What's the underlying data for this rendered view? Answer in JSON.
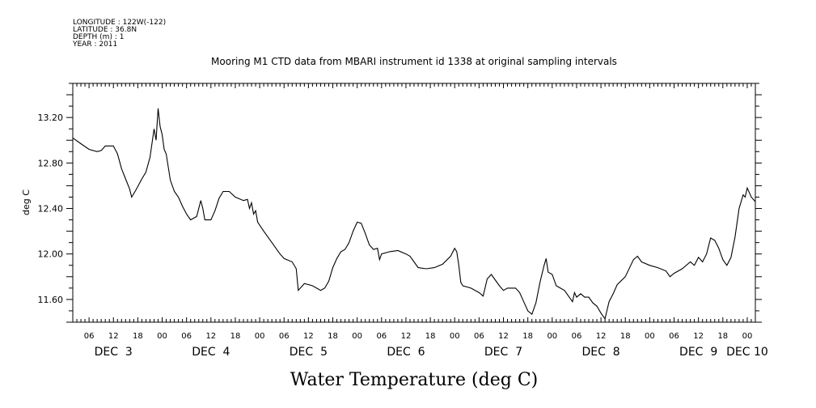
{
  "metadata": {
    "longitude": "LONGITUDE : 122W(-122)",
    "latitude": "LATITUDE : 36.8N",
    "depth": "DEPTH (m) : 1",
    "year": "YEAR : 2011"
  },
  "chart_data": {
    "type": "line",
    "title": "Mooring M1 CTD data from MBARI instrument id 1338 at original sampling intervals",
    "xlabel": "Water Temperature (deg C)",
    "ylabel": "deg C",
    "ylim": [
      11.4,
      13.5
    ],
    "yticks": [
      11.6,
      12.0,
      12.4,
      12.8,
      13.2
    ],
    "ytick_labels": [
      "11.60",
      "12.00",
      "12.40",
      "12.80",
      "13.20"
    ],
    "x_start": "2011-12-03T02:00",
    "x_end": "2011-12-10T02:00",
    "hour_labels": [
      {
        "x": "2011-12-03T06:00",
        "text": "06"
      },
      {
        "x": "2011-12-03T12:00",
        "text": "12"
      },
      {
        "x": "2011-12-03T18:00",
        "text": "18"
      },
      {
        "x": "2011-12-04T00:00",
        "text": "00"
      },
      {
        "x": "2011-12-04T06:00",
        "text": "06"
      },
      {
        "x": "2011-12-04T12:00",
        "text": "12"
      },
      {
        "x": "2011-12-04T18:00",
        "text": "18"
      },
      {
        "x": "2011-12-05T00:00",
        "text": "00"
      },
      {
        "x": "2011-12-05T06:00",
        "text": "06"
      },
      {
        "x": "2011-12-05T12:00",
        "text": "12"
      },
      {
        "x": "2011-12-05T18:00",
        "text": "18"
      },
      {
        "x": "2011-12-06T00:00",
        "text": "00"
      },
      {
        "x": "2011-12-06T06:00",
        "text": "06"
      },
      {
        "x": "2011-12-06T12:00",
        "text": "12"
      },
      {
        "x": "2011-12-06T18:00",
        "text": "18"
      },
      {
        "x": "2011-12-07T00:00",
        "text": "00"
      },
      {
        "x": "2011-12-07T06:00",
        "text": "06"
      },
      {
        "x": "2011-12-07T12:00",
        "text": "12"
      },
      {
        "x": "2011-12-07T18:00",
        "text": "18"
      },
      {
        "x": "2011-12-08T00:00",
        "text": "00"
      },
      {
        "x": "2011-12-08T06:00",
        "text": "06"
      },
      {
        "x": "2011-12-08T12:00",
        "text": "12"
      },
      {
        "x": "2011-12-08T18:00",
        "text": "18"
      },
      {
        "x": "2011-12-09T00:00",
        "text": "00"
      },
      {
        "x": "2011-12-09T06:00",
        "text": "06"
      },
      {
        "x": "2011-12-09T12:00",
        "text": "12"
      },
      {
        "x": "2011-12-09T18:00",
        "text": "18"
      },
      {
        "x": "2011-12-10T00:00",
        "text": "00"
      }
    ],
    "day_labels": [
      {
        "x": "2011-12-03T12:00",
        "text": "DEC  3"
      },
      {
        "x": "2011-12-04T12:00",
        "text": "DEC  4"
      },
      {
        "x": "2011-12-05T12:00",
        "text": "DEC  5"
      },
      {
        "x": "2011-12-06T12:00",
        "text": "DEC  6"
      },
      {
        "x": "2011-12-07T12:00",
        "text": "DEC  7"
      },
      {
        "x": "2011-12-08T12:00",
        "text": "DEC  8"
      },
      {
        "x": "2011-12-09T12:00",
        "text": "DEC  9"
      },
      {
        "x": "2011-12-10T00:00",
        "text": "DEC 10"
      }
    ],
    "series": [
      {
        "values": [
          [
            "2011-12-03T02:00",
            13.02
          ],
          [
            "2011-12-03T04:00",
            12.97
          ],
          [
            "2011-12-03T06:00",
            12.92
          ],
          [
            "2011-12-03T08:00",
            12.9
          ],
          [
            "2011-12-03T09:00",
            12.91
          ],
          [
            "2011-12-03T10:00",
            12.95
          ],
          [
            "2011-12-03T12:00",
            12.95
          ],
          [
            "2011-12-03T13:00",
            12.88
          ],
          [
            "2011-12-03T14:00",
            12.75
          ],
          [
            "2011-12-03T15:00",
            12.66
          ],
          [
            "2011-12-03T16:00",
            12.57
          ],
          [
            "2011-12-03T16:30",
            12.5
          ],
          [
            "2011-12-03T17:30",
            12.56
          ],
          [
            "2011-12-03T19:00",
            12.66
          ],
          [
            "2011-12-03T20:00",
            12.72
          ],
          [
            "2011-12-03T21:00",
            12.85
          ],
          [
            "2011-12-03T22:00",
            13.1
          ],
          [
            "2011-12-03T22:30",
            13.0
          ],
          [
            "2011-12-03T23:00",
            13.28
          ],
          [
            "2011-12-03T23:30",
            13.12
          ],
          [
            "2011-12-04T00:00",
            13.05
          ],
          [
            "2011-12-04T00:30",
            12.92
          ],
          [
            "2011-12-04T01:00",
            12.88
          ],
          [
            "2011-12-04T02:00",
            12.65
          ],
          [
            "2011-12-04T03:00",
            12.55
          ],
          [
            "2011-12-04T04:00",
            12.5
          ],
          [
            "2011-12-04T05:00",
            12.42
          ],
          [
            "2011-12-04T06:00",
            12.35
          ],
          [
            "2011-12-04T07:00",
            12.3
          ],
          [
            "2011-12-04T08:30",
            12.33
          ],
          [
            "2011-12-04T09:30",
            12.47
          ],
          [
            "2011-12-04T10:00",
            12.4
          ],
          [
            "2011-12-04T10:30",
            12.3
          ],
          [
            "2011-12-04T12:00",
            12.3
          ],
          [
            "2011-12-04T13:00",
            12.38
          ],
          [
            "2011-12-04T14:00",
            12.49
          ],
          [
            "2011-12-04T15:00",
            12.55
          ],
          [
            "2011-12-04T16:30",
            12.55
          ],
          [
            "2011-12-04T18:00",
            12.5
          ],
          [
            "2011-12-04T20:00",
            12.47
          ],
          [
            "2011-12-04T21:00",
            12.48
          ],
          [
            "2011-12-04T21:30",
            12.4
          ],
          [
            "2011-12-04T22:00",
            12.45
          ],
          [
            "2011-12-04T22:30",
            12.35
          ],
          [
            "2011-12-04T23:00",
            12.38
          ],
          [
            "2011-12-04T23:30",
            12.28
          ],
          [
            "2011-12-05T01:00",
            12.2
          ],
          [
            "2011-12-05T03:00",
            12.1
          ],
          [
            "2011-12-05T04:00",
            12.05
          ],
          [
            "2011-12-05T05:00",
            12.0
          ],
          [
            "2011-12-05T06:00",
            11.96
          ],
          [
            "2011-12-05T08:00",
            11.93
          ],
          [
            "2011-12-05T09:00",
            11.87
          ],
          [
            "2011-12-05T09:30",
            11.68
          ],
          [
            "2011-12-05T11:00",
            11.74
          ],
          [
            "2011-12-05T13:00",
            11.72
          ],
          [
            "2011-12-05T15:00",
            11.68
          ],
          [
            "2011-12-05T16:00",
            11.7
          ],
          [
            "2011-12-05T17:00",
            11.76
          ],
          [
            "2011-12-05T18:00",
            11.88
          ],
          [
            "2011-12-05T19:00",
            11.96
          ],
          [
            "2011-12-05T20:00",
            12.02
          ],
          [
            "2011-12-05T21:00",
            12.04
          ],
          [
            "2011-12-05T22:00",
            12.1
          ],
          [
            "2011-12-05T23:00",
            12.2
          ],
          [
            "2011-12-06T00:00",
            12.28
          ],
          [
            "2011-12-06T01:00",
            12.27
          ],
          [
            "2011-12-06T02:00",
            12.18
          ],
          [
            "2011-12-06T03:00",
            12.08
          ],
          [
            "2011-12-06T04:00",
            12.04
          ],
          [
            "2011-12-06T05:00",
            12.05
          ],
          [
            "2011-12-06T05:30",
            11.95
          ],
          [
            "2011-12-06T06:00",
            12.0
          ],
          [
            "2011-12-06T08:00",
            12.02
          ],
          [
            "2011-12-06T10:00",
            12.03
          ],
          [
            "2011-12-06T12:00",
            12.0
          ],
          [
            "2011-12-06T13:00",
            11.98
          ],
          [
            "2011-12-06T14:00",
            11.93
          ],
          [
            "2011-12-06T15:00",
            11.88
          ],
          [
            "2011-12-06T17:00",
            11.87
          ],
          [
            "2011-12-06T19:00",
            11.88
          ],
          [
            "2011-12-06T21:00",
            11.91
          ],
          [
            "2011-12-06T23:00",
            11.98
          ],
          [
            "2011-12-07T00:00",
            12.05
          ],
          [
            "2011-12-07T00:30",
            12.02
          ],
          [
            "2011-12-07T01:00",
            11.9
          ],
          [
            "2011-12-07T01:30",
            11.75
          ],
          [
            "2011-12-07T02:00",
            11.72
          ],
          [
            "2011-12-07T04:00",
            11.7
          ],
          [
            "2011-12-07T06:00",
            11.66
          ],
          [
            "2011-12-07T07:00",
            11.63
          ],
          [
            "2011-12-07T08:00",
            11.78
          ],
          [
            "2011-12-07T09:00",
            11.82
          ],
          [
            "2011-12-07T10:00",
            11.77
          ],
          [
            "2011-12-07T11:00",
            11.72
          ],
          [
            "2011-12-07T12:00",
            11.68
          ],
          [
            "2011-12-07T13:00",
            11.7
          ],
          [
            "2011-12-07T15:00",
            11.7
          ],
          [
            "2011-12-07T16:00",
            11.66
          ],
          [
            "2011-12-07T17:00",
            11.58
          ],
          [
            "2011-12-07T18:00",
            11.5
          ],
          [
            "2011-12-07T19:00",
            11.47
          ],
          [
            "2011-12-07T20:00",
            11.57
          ],
          [
            "2011-12-07T21:00",
            11.75
          ],
          [
            "2011-12-07T22:00",
            11.9
          ],
          [
            "2011-12-07T22:30",
            11.96
          ],
          [
            "2011-12-07T23:00",
            11.84
          ],
          [
            "2011-12-08T00:00",
            11.82
          ],
          [
            "2011-12-08T01:00",
            11.72
          ],
          [
            "2011-12-08T03:00",
            11.68
          ],
          [
            "2011-12-08T05:00",
            11.58
          ],
          [
            "2011-12-08T05:30",
            11.66
          ],
          [
            "2011-12-08T06:00",
            11.62
          ],
          [
            "2011-12-08T07:00",
            11.65
          ],
          [
            "2011-12-08T08:00",
            11.62
          ],
          [
            "2011-12-08T09:00",
            11.62
          ],
          [
            "2011-12-08T10:00",
            11.57
          ],
          [
            "2011-12-08T11:00",
            11.54
          ],
          [
            "2011-12-08T12:00",
            11.48
          ],
          [
            "2011-12-08T13:00",
            11.43
          ],
          [
            "2011-12-08T14:00",
            11.58
          ],
          [
            "2011-12-08T15:00",
            11.65
          ],
          [
            "2011-12-08T16:00",
            11.73
          ],
          [
            "2011-12-08T18:00",
            11.8
          ],
          [
            "2011-12-08T20:00",
            11.95
          ],
          [
            "2011-12-08T21:00",
            11.98
          ],
          [
            "2011-12-08T22:00",
            11.93
          ],
          [
            "2011-12-09T00:00",
            11.9
          ],
          [
            "2011-12-09T02:00",
            11.88
          ],
          [
            "2011-12-09T04:00",
            11.85
          ],
          [
            "2011-12-09T05:00",
            11.8
          ],
          [
            "2011-12-09T06:00",
            11.83
          ],
          [
            "2011-12-09T08:00",
            11.87
          ],
          [
            "2011-12-09T10:00",
            11.93
          ],
          [
            "2011-12-09T11:00",
            11.9
          ],
          [
            "2011-12-09T12:00",
            11.97
          ],
          [
            "2011-12-09T13:00",
            11.93
          ],
          [
            "2011-12-09T14:00",
            12.0
          ],
          [
            "2011-12-09T15:00",
            12.14
          ],
          [
            "2011-12-09T16:00",
            12.12
          ],
          [
            "2011-12-09T17:00",
            12.05
          ],
          [
            "2011-12-09T18:00",
            11.95
          ],
          [
            "2011-12-09T19:00",
            11.9
          ],
          [
            "2011-12-09T20:00",
            11.97
          ],
          [
            "2011-12-09T21:00",
            12.15
          ],
          [
            "2011-12-09T22:00",
            12.4
          ],
          [
            "2011-12-09T23:00",
            12.52
          ],
          [
            "2011-12-09T23:30",
            12.5
          ],
          [
            "2011-12-10T00:00",
            12.58
          ],
          [
            "2011-12-10T01:00",
            12.5
          ],
          [
            "2011-12-10T02:00",
            12.46
          ]
        ]
      }
    ]
  }
}
